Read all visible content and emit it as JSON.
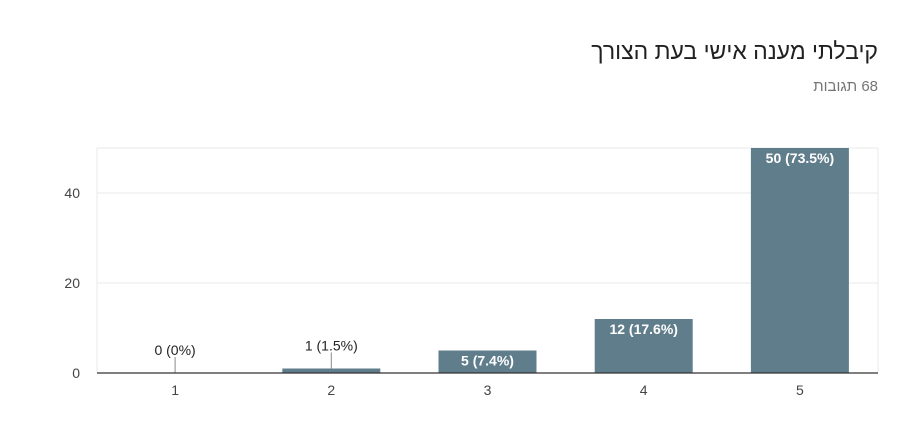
{
  "title": "קיבלתי מענה אישי בעת הצורך",
  "response_count": "68 תגובות",
  "colors": {
    "bar": "#607d8b",
    "grid": "#e8e8e8",
    "axis": "#333333"
  },
  "chart_data": {
    "type": "bar",
    "categories": [
      "1",
      "2",
      "3",
      "4",
      "5"
    ],
    "values": [
      0,
      1,
      5,
      12,
      50
    ],
    "data_labels": [
      "0 (0%)",
      "1 (1.5%)",
      "5 (7.4%)",
      "12 (17.6%)",
      "50 (73.5%)"
    ],
    "ylim": [
      0,
      50
    ],
    "yticks": [
      0,
      20,
      40
    ],
    "grid": true,
    "xlabel": "",
    "ylabel": ""
  }
}
